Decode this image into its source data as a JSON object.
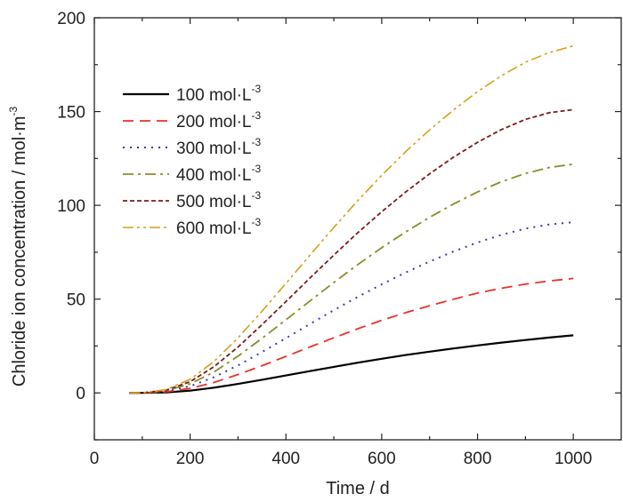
{
  "chart_data": {
    "type": "line",
    "title": "",
    "xlabel": "Time / d",
    "ylabel": "Chloride ion concentration / mol·m",
    "ylabel_sup": "-3",
    "xlim": [
      0,
      1100
    ],
    "ylim": [
      -25,
      200
    ],
    "xticks": [
      0,
      200,
      400,
      600,
      800,
      1000
    ],
    "yticks": [
      0,
      50,
      100,
      150,
      200
    ],
    "grid": false,
    "legend_position": "top-left",
    "x": [
      73,
      100,
      150,
      200,
      250,
      300,
      350,
      400,
      450,
      500,
      550,
      600,
      650,
      700,
      750,
      800,
      850,
      900,
      950,
      1000
    ],
    "series": [
      {
        "name": "100 mol·L",
        "unit_sup": "-3",
        "color": "#000000",
        "dash": "",
        "width": 2.2,
        "values": [
          0,
          0,
          0.3,
          1.2,
          2.8,
          4.8,
          7.0,
          9.3,
          11.6,
          13.9,
          16.1,
          18.2,
          20.2,
          22.0,
          23.7,
          25.3,
          26.8,
          28.2,
          29.5,
          30.7
        ]
      },
      {
        "name": "200 mol·L",
        "unit_sup": "-3",
        "color": "#e8322a",
        "dash": "12,7",
        "width": 1.8,
        "values": [
          0,
          0,
          0.6,
          2.4,
          5.6,
          9.8,
          14.5,
          19.5,
          24.5,
          29.4,
          34.2,
          38.7,
          42.8,
          46.5,
          50.0,
          53.2,
          55.8,
          58.0,
          59.7,
          61.0
        ]
      },
      {
        "name": "300 mol·L",
        "unit_sup": "-3",
        "color": "#3b3ba6",
        "dash": "2,6",
        "width": 2.0,
        "values": [
          0,
          0,
          0.9,
          3.6,
          8.4,
          14.7,
          21.8,
          29.2,
          36.7,
          44.1,
          51.2,
          57.9,
          64.2,
          70.0,
          75.4,
          80.2,
          84.3,
          87.6,
          89.8,
          91.0
        ]
      },
      {
        "name": "400 mol·L",
        "unit_sup": "-3",
        "color": "#8c8c2a",
        "dash": "12,5,3,5",
        "width": 1.8,
        "values": [
          0,
          0,
          1.2,
          4.8,
          11.2,
          19.6,
          29.1,
          39.0,
          49.0,
          58.9,
          68.4,
          77.4,
          85.8,
          93.6,
          100.7,
          107.1,
          112.6,
          117.0,
          120.2,
          122.0
        ]
      },
      {
        "name": "500 mol·L",
        "unit_sup": "-3",
        "color": "#7a1c1c",
        "dash": "5,3",
        "width": 1.8,
        "values": [
          0,
          0,
          1.5,
          6.0,
          14.0,
          24.5,
          36.4,
          48.7,
          61.2,
          73.5,
          85.4,
          96.6,
          107.1,
          116.8,
          125.7,
          133.6,
          140.4,
          145.8,
          149.4,
          151.0
        ]
      },
      {
        "name": "600 mol·L",
        "unit_sup": "-3",
        "color": "#d4a017",
        "dash": "12,4,3,4,3,4",
        "width": 1.6,
        "values": [
          0,
          0,
          1.8,
          7.2,
          16.8,
          29.4,
          43.6,
          58.4,
          73.4,
          88.2,
          102.5,
          116.0,
          128.6,
          140.2,
          150.9,
          160.6,
          169.1,
          176.3,
          181.5,
          185.0
        ]
      }
    ]
  }
}
